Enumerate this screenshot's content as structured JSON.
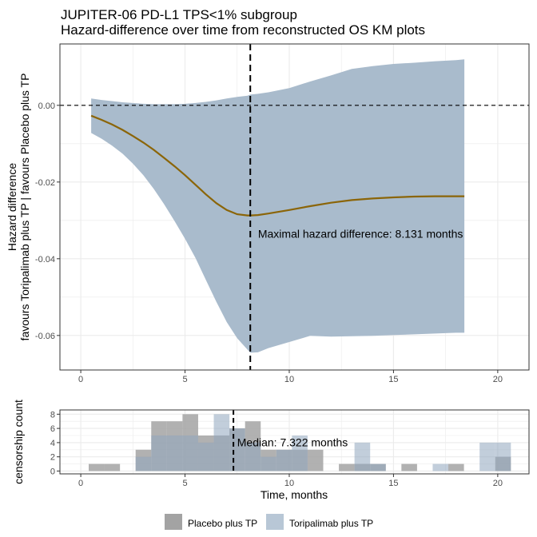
{
  "title_line1": "JUPITER-06 PD-L1 TPS<1% subgroup",
  "title_line2": "Hazard-difference over time from reconstructed OS KM plots",
  "colors": {
    "ribbon": "#A9BBCC",
    "curve": "#8B6508",
    "placebo_bar": "#A3A3A3",
    "toripalimab_bar": "#B8C7D6",
    "overlap_bar": "#7F8C99",
    "grid": "#EBEBEB",
    "panel_border": "#333333"
  },
  "chart_data": [
    {
      "id": "hazard",
      "type": "line",
      "ylabel_line1": "Hazard difference",
      "ylabel_line2": "favours Toripalimab plus TP | favours Placebo plus TP",
      "xlim": [
        -1.0,
        21.5
      ],
      "ylim": [
        -0.069,
        0.016
      ],
      "xticks": [
        0,
        5,
        10,
        15,
        20
      ],
      "xtick_labels": [
        "0",
        "5",
        "10",
        "15",
        "20"
      ],
      "yticks": [
        0.0,
        -0.02,
        -0.04,
        -0.06
      ],
      "ytick_labels": [
        "0.00",
        "-0.02",
        "-0.04",
        "-0.06"
      ],
      "grid": true,
      "hline": 0.0,
      "vline": 8.131,
      "annotation": "Maximal hazard difference: 8.131 months",
      "annotation_x": 8.5,
      "annotation_y": -0.0345,
      "series": [
        {
          "x": [
            0.5,
            1,
            1.5,
            2,
            2.5,
            3,
            3.5,
            4,
            4.5,
            5,
            5.5,
            6,
            6.5,
            7,
            7.5,
            8,
            8.131,
            8.5,
            9,
            10,
            11,
            12,
            13,
            14,
            15,
            16,
            17,
            18,
            18.4
          ],
          "y": [
            -0.0027,
            -0.0038,
            -0.005,
            -0.0064,
            -0.008,
            -0.0097,
            -0.0116,
            -0.0137,
            -0.0159,
            -0.0182,
            -0.0207,
            -0.0232,
            -0.0255,
            -0.0273,
            -0.0284,
            -0.0287,
            -0.0287,
            -0.0286,
            -0.0282,
            -0.0273,
            -0.0263,
            -0.0254,
            -0.0247,
            -0.0243,
            -0.024,
            -0.0238,
            -0.0237,
            -0.0237,
            -0.0237
          ],
          "lower": [
            -0.0072,
            -0.0087,
            -0.0105,
            -0.0126,
            -0.0152,
            -0.0182,
            -0.0218,
            -0.0258,
            -0.0302,
            -0.0348,
            -0.0398,
            -0.0455,
            -0.0512,
            -0.0565,
            -0.0607,
            -0.0637,
            -0.0645,
            -0.0644,
            -0.0633,
            -0.0617,
            -0.0601,
            -0.0603,
            -0.0602,
            -0.0601,
            -0.0599,
            -0.0597,
            -0.0595,
            -0.0593,
            -0.0593
          ],
          "upper": [
            0.0018,
            0.0014,
            0.0011,
            0.0008,
            0.0006,
            0.0004,
            0.0003,
            0.0003,
            0.0003,
            0.0004,
            0.0006,
            0.0009,
            0.0013,
            0.0018,
            0.0022,
            0.0025,
            0.0028,
            0.003,
            0.0034,
            0.0045,
            0.0062,
            0.0078,
            0.0095,
            0.0102,
            0.0108,
            0.0111,
            0.0115,
            0.0118,
            0.012
          ]
        }
      ]
    },
    {
      "id": "censor",
      "type": "bar",
      "ylabel": "censorship count",
      "xlabel": "Time, months",
      "xlim": [
        -1.0,
        21.5
      ],
      "ylim": [
        -0.4,
        8.6
      ],
      "xticks": [
        0,
        5,
        10,
        15,
        20
      ],
      "xtick_labels": [
        "0",
        "5",
        "10",
        "15",
        "20"
      ],
      "yticks": [
        0,
        2,
        4,
        6,
        8
      ],
      "ytick_labels": [
        "0",
        "2",
        "4",
        "6",
        "8"
      ],
      "grid": true,
      "vline": 7.322,
      "annotation": "Median: 7.322 months",
      "annotation_x": 7.5,
      "annotation_y": 3.5,
      "bin_width": 0.75,
      "bin_starts": [
        0.38,
        1.13,
        1.88,
        2.63,
        3.38,
        4.13,
        4.88,
        5.63,
        6.38,
        7.13,
        7.88,
        8.63,
        9.38,
        10.13,
        10.88,
        11.63,
        12.38,
        13.13,
        13.88,
        14.63,
        15.38,
        16.13,
        16.88,
        17.63,
        18.38,
        19.13,
        19.88
      ],
      "series": [
        {
          "name": "Placebo plus TP",
          "values": [
            1,
            1,
            0,
            3,
            7,
            7,
            8,
            5,
            5,
            6,
            7,
            3,
            3,
            3,
            3,
            0,
            1,
            1,
            1,
            0,
            1,
            0,
            0,
            1,
            0,
            0,
            2
          ]
        },
        {
          "name": "Toripalimab plus TP",
          "values": [
            0,
            0,
            0,
            2,
            5,
            5,
            5,
            4,
            8,
            6,
            4,
            2,
            3,
            5,
            0,
            0,
            0,
            4,
            1,
            0,
            0,
            0,
            1,
            0,
            0,
            4,
            4
          ]
        }
      ]
    }
  ],
  "legend": {
    "items": [
      {
        "label": "Placebo plus TP"
      },
      {
        "label": "Toripalimab plus TP"
      }
    ]
  }
}
